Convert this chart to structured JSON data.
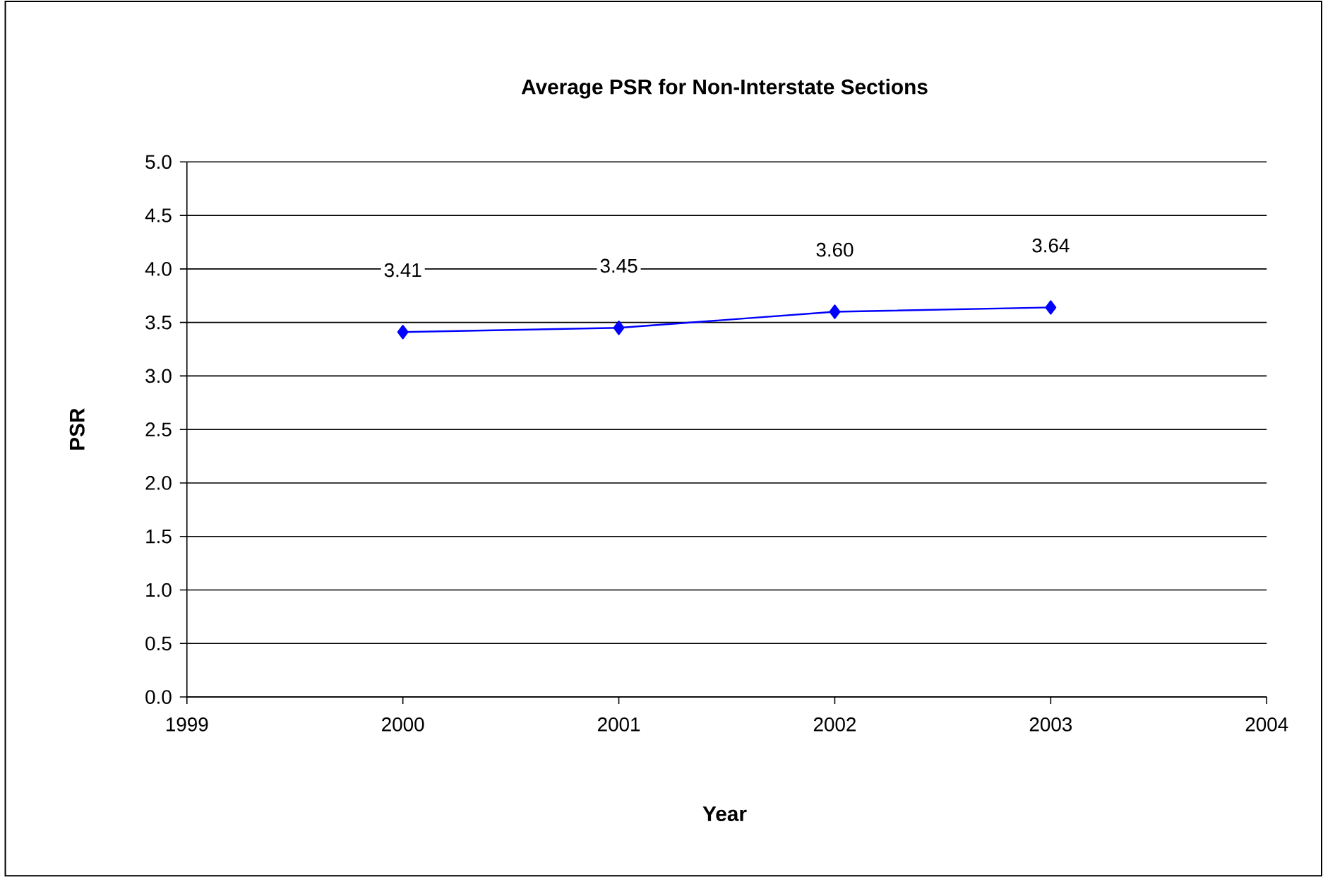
{
  "chart_data": {
    "type": "line",
    "title": "Average PSR for Non-Interstate Sections",
    "xlabel": "Year",
    "ylabel": "PSR",
    "x": [
      2000,
      2001,
      2002,
      2003
    ],
    "values": [
      3.41,
      3.45,
      3.6,
      3.64
    ],
    "value_labels": [
      "3.41",
      "3.45",
      "3.60",
      "3.64"
    ],
    "color": "#0000ff",
    "marker": "diamond",
    "grid": "y",
    "xlim": [
      1999,
      2004
    ],
    "xticks": [
      1999,
      2000,
      2001,
      2002,
      2003,
      2004
    ],
    "ylim": [
      0,
      5
    ],
    "yticks": [
      {
        "value": 0,
        "label": "0.0"
      },
      {
        "value": 0.5,
        "label": "0.5"
      },
      {
        "value": 1,
        "label": "1.0"
      },
      {
        "value": 1.5,
        "label": "1.5"
      },
      {
        "value": 2,
        "label": "2.0"
      },
      {
        "value": 2.5,
        "label": "2.5"
      },
      {
        "value": 3,
        "label": "3.0"
      },
      {
        "value": 3.5,
        "label": "3.5"
      },
      {
        "value": 4,
        "label": "4.0"
      },
      {
        "value": 4.5,
        "label": "4.5"
      },
      {
        "value": 5,
        "label": "5.0"
      }
    ]
  }
}
